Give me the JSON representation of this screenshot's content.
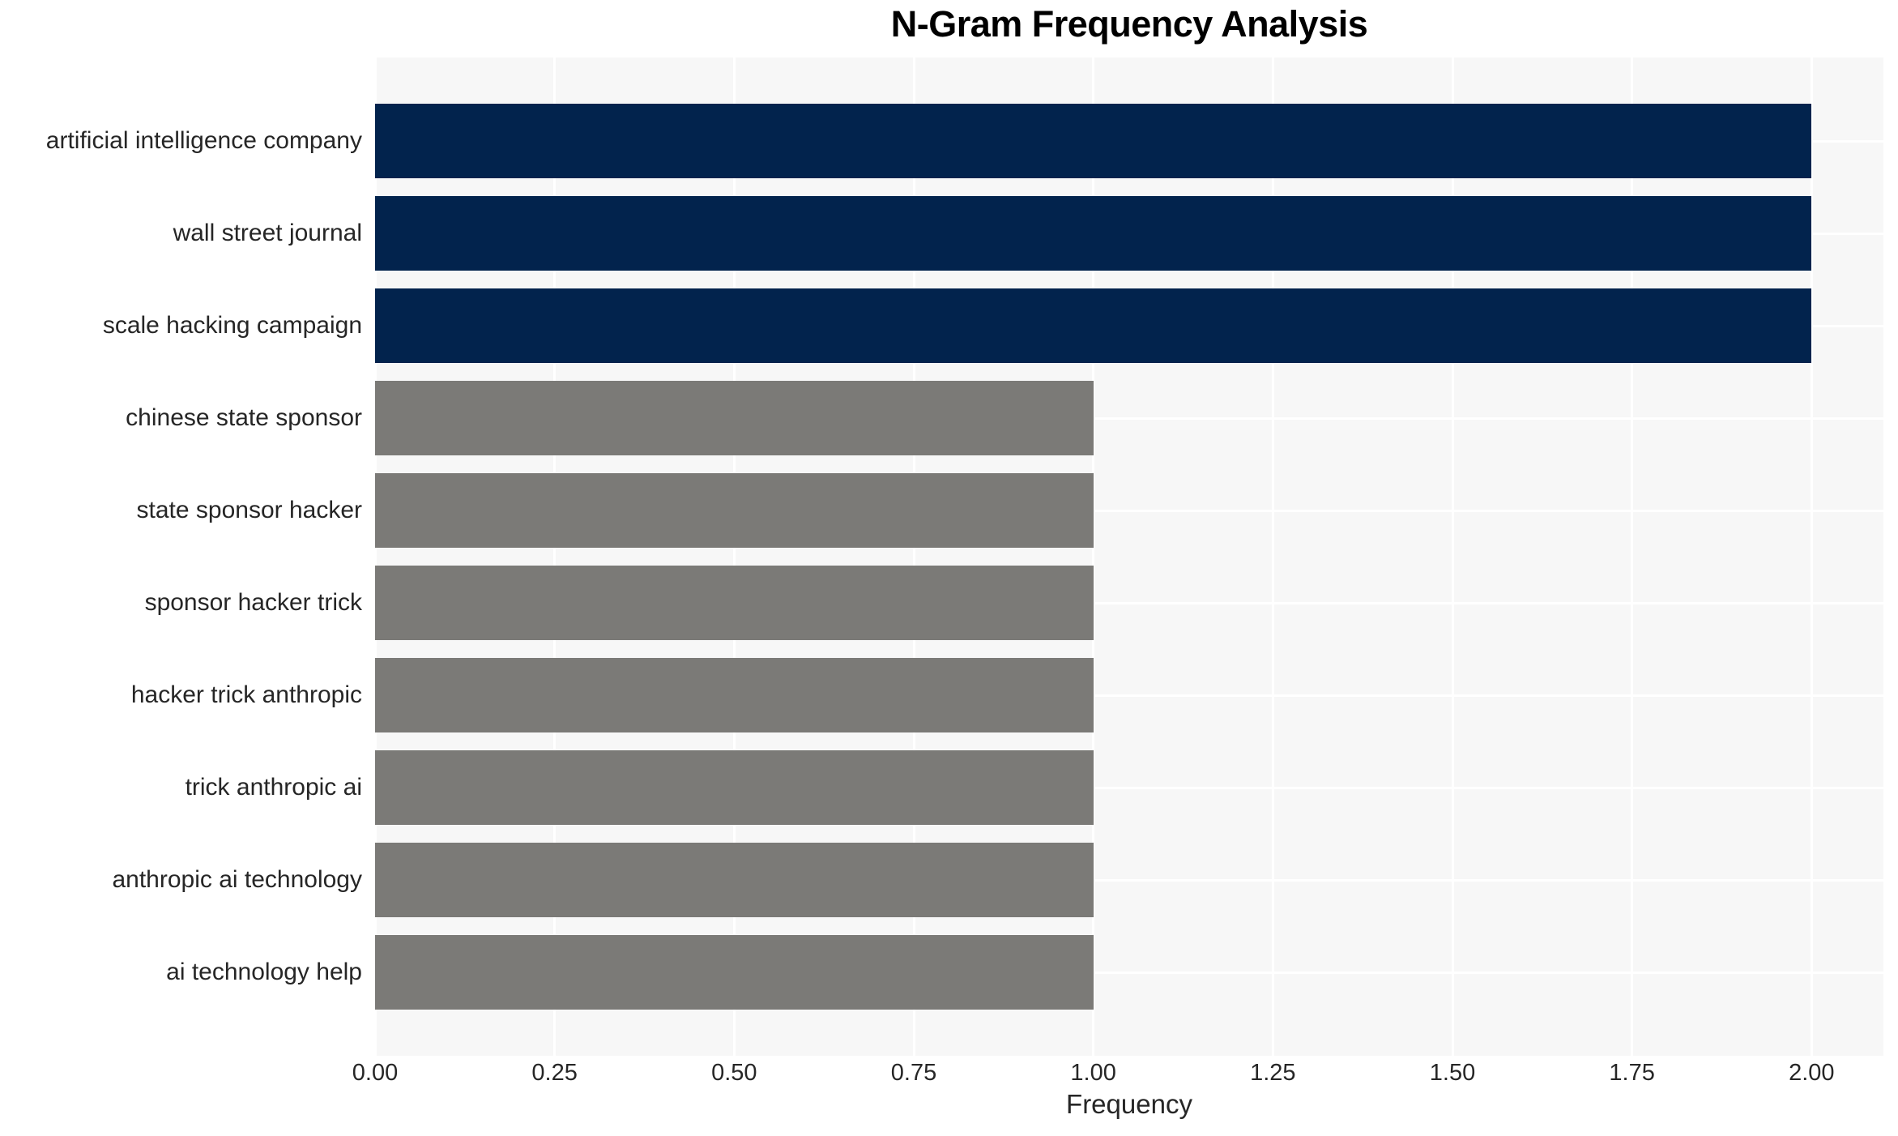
{
  "chart_data": {
    "type": "bar",
    "orientation": "horizontal",
    "title": "N-Gram Frequency Analysis",
    "xlabel": "Frequency",
    "ylabel": "",
    "categories": [
      "artificial intelligence company",
      "wall street journal",
      "scale hacking campaign",
      "chinese state sponsor",
      "state sponsor hacker",
      "sponsor hacker trick",
      "hacker trick anthropic",
      "trick anthropic ai",
      "anthropic ai technology",
      "ai technology help"
    ],
    "values": [
      2,
      2,
      2,
      1,
      1,
      1,
      1,
      1,
      1,
      1
    ],
    "bar_colors": [
      "#02234d",
      "#02234d",
      "#02234d",
      "#7b7a77",
      "#7b7a77",
      "#7b7a77",
      "#7b7a77",
      "#7b7a77",
      "#7b7a77",
      "#7b7a77"
    ],
    "xlim": [
      0,
      2.1
    ],
    "xticks": [
      0.0,
      0.25,
      0.5,
      0.75,
      1.0,
      1.25,
      1.5,
      1.75,
      2.0
    ],
    "xtick_labels": [
      "0.00",
      "0.25",
      "0.50",
      "0.75",
      "1.00",
      "1.25",
      "1.50",
      "1.75",
      "2.00"
    ],
    "grid": true,
    "legend": false,
    "plot_bg_color": "#f7f7f7",
    "grid_color": "#ffffff",
    "figure_bg_color": "#ffffff",
    "text_color": "#262626",
    "title_color": "#000000",
    "navy_color": "#02234d",
    "gray_color": "#7b7a77"
  }
}
